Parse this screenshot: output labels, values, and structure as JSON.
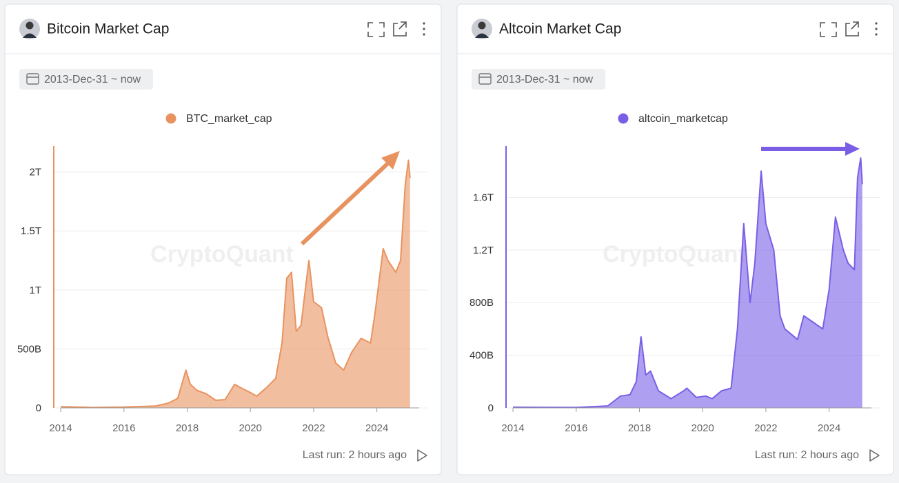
{
  "chart_data": [
    {
      "type": "area",
      "title": "Bitcoin Market Cap",
      "date_range": "2013-Dec-31 ~ now",
      "watermark": "CryptoQuant",
      "footer": "Last run: 2 hours ago",
      "x": [
        2014,
        2015,
        2016,
        2017.0,
        2017.4,
        2017.7,
        2017.96,
        2018.1,
        2018.3,
        2018.6,
        2018.9,
        2019.2,
        2019.5,
        2019.7,
        2020.0,
        2020.2,
        2020.5,
        2020.8,
        2021.0,
        2021.15,
        2021.3,
        2021.45,
        2021.6,
        2021.85,
        2022.0,
        2022.25,
        2022.45,
        2022.7,
        2022.95,
        2023.2,
        2023.5,
        2023.8,
        2023.95,
        2024.2,
        2024.35,
        2024.6,
        2024.75,
        2024.9,
        2025.0,
        2025.05
      ],
      "series": [
        {
          "name": "BTC_market_cap",
          "color": "#e8935f",
          "values": [
            10,
            4,
            7,
            16,
            40,
            80,
            320,
            200,
            150,
            120,
            65,
            70,
            200,
            170,
            130,
            100,
            170,
            250,
            550,
            1100,
            1150,
            650,
            700,
            1250,
            900,
            850,
            600,
            380,
            320,
            470,
            590,
            550,
            820,
            1350,
            1250,
            1150,
            1250,
            1900,
            2100,
            1950
          ]
        }
      ],
      "xlim": [
        2013.78,
        2025.6
      ],
      "xticks": [
        2014,
        2016,
        2018,
        2020,
        2022,
        2024
      ],
      "ylim": [
        0,
        2220
      ],
      "yticks": [
        0,
        {
          "value": 500,
          "label": "500B"
        },
        {
          "value": 1000,
          "label": "1T"
        },
        {
          "value": 1500,
          "label": "1.5T"
        },
        {
          "value": 2000,
          "label": "2T"
        }
      ],
      "grid": true
    },
    {
      "type": "area",
      "title": "Altcoin Market Cap",
      "date_range": "2013-Dec-31 ~ now",
      "watermark": "CryptoQuant",
      "footer": "Last run: 2 hours ago",
      "x": [
        2014,
        2016,
        2017.0,
        2017.4,
        2017.7,
        2017.9,
        2018.05,
        2018.2,
        2018.35,
        2018.6,
        2019.0,
        2019.4,
        2019.5,
        2019.8,
        2020.1,
        2020.3,
        2020.6,
        2020.9,
        2021.1,
        2021.3,
        2021.5,
        2021.65,
        2021.85,
        2022.0,
        2022.25,
        2022.45,
        2022.6,
        2022.8,
        2023.0,
        2023.2,
        2023.5,
        2023.8,
        2024.0,
        2024.2,
        2024.45,
        2024.6,
        2024.8,
        2024.9,
        2025.0,
        2025.05
      ],
      "series": [
        {
          "name": "altcoin_marketcap",
          "color": "#7a5fe6",
          "values": [
            5,
            3,
            15,
            90,
            100,
            200,
            540,
            250,
            280,
            130,
            70,
            130,
            150,
            80,
            90,
            70,
            130,
            150,
            600,
            1400,
            800,
            1100,
            1800,
            1400,
            1200,
            700,
            600,
            560,
            520,
            700,
            650,
            600,
            900,
            1450,
            1200,
            1100,
            1050,
            1750,
            1900,
            1700
          ]
        }
      ],
      "xlim": [
        2013.78,
        2025.6
      ],
      "xticks": [
        2014,
        2016,
        2018,
        2020,
        2022,
        2024
      ],
      "ylim": [
        0,
        1990
      ],
      "yticks": [
        0,
        {
          "value": 400,
          "label": "400B"
        },
        {
          "value": 800,
          "label": "800B"
        },
        {
          "value": 1200,
          "label": "1.2T"
        },
        {
          "value": 1600,
          "label": "1.6T"
        }
      ],
      "grid": true
    }
  ]
}
